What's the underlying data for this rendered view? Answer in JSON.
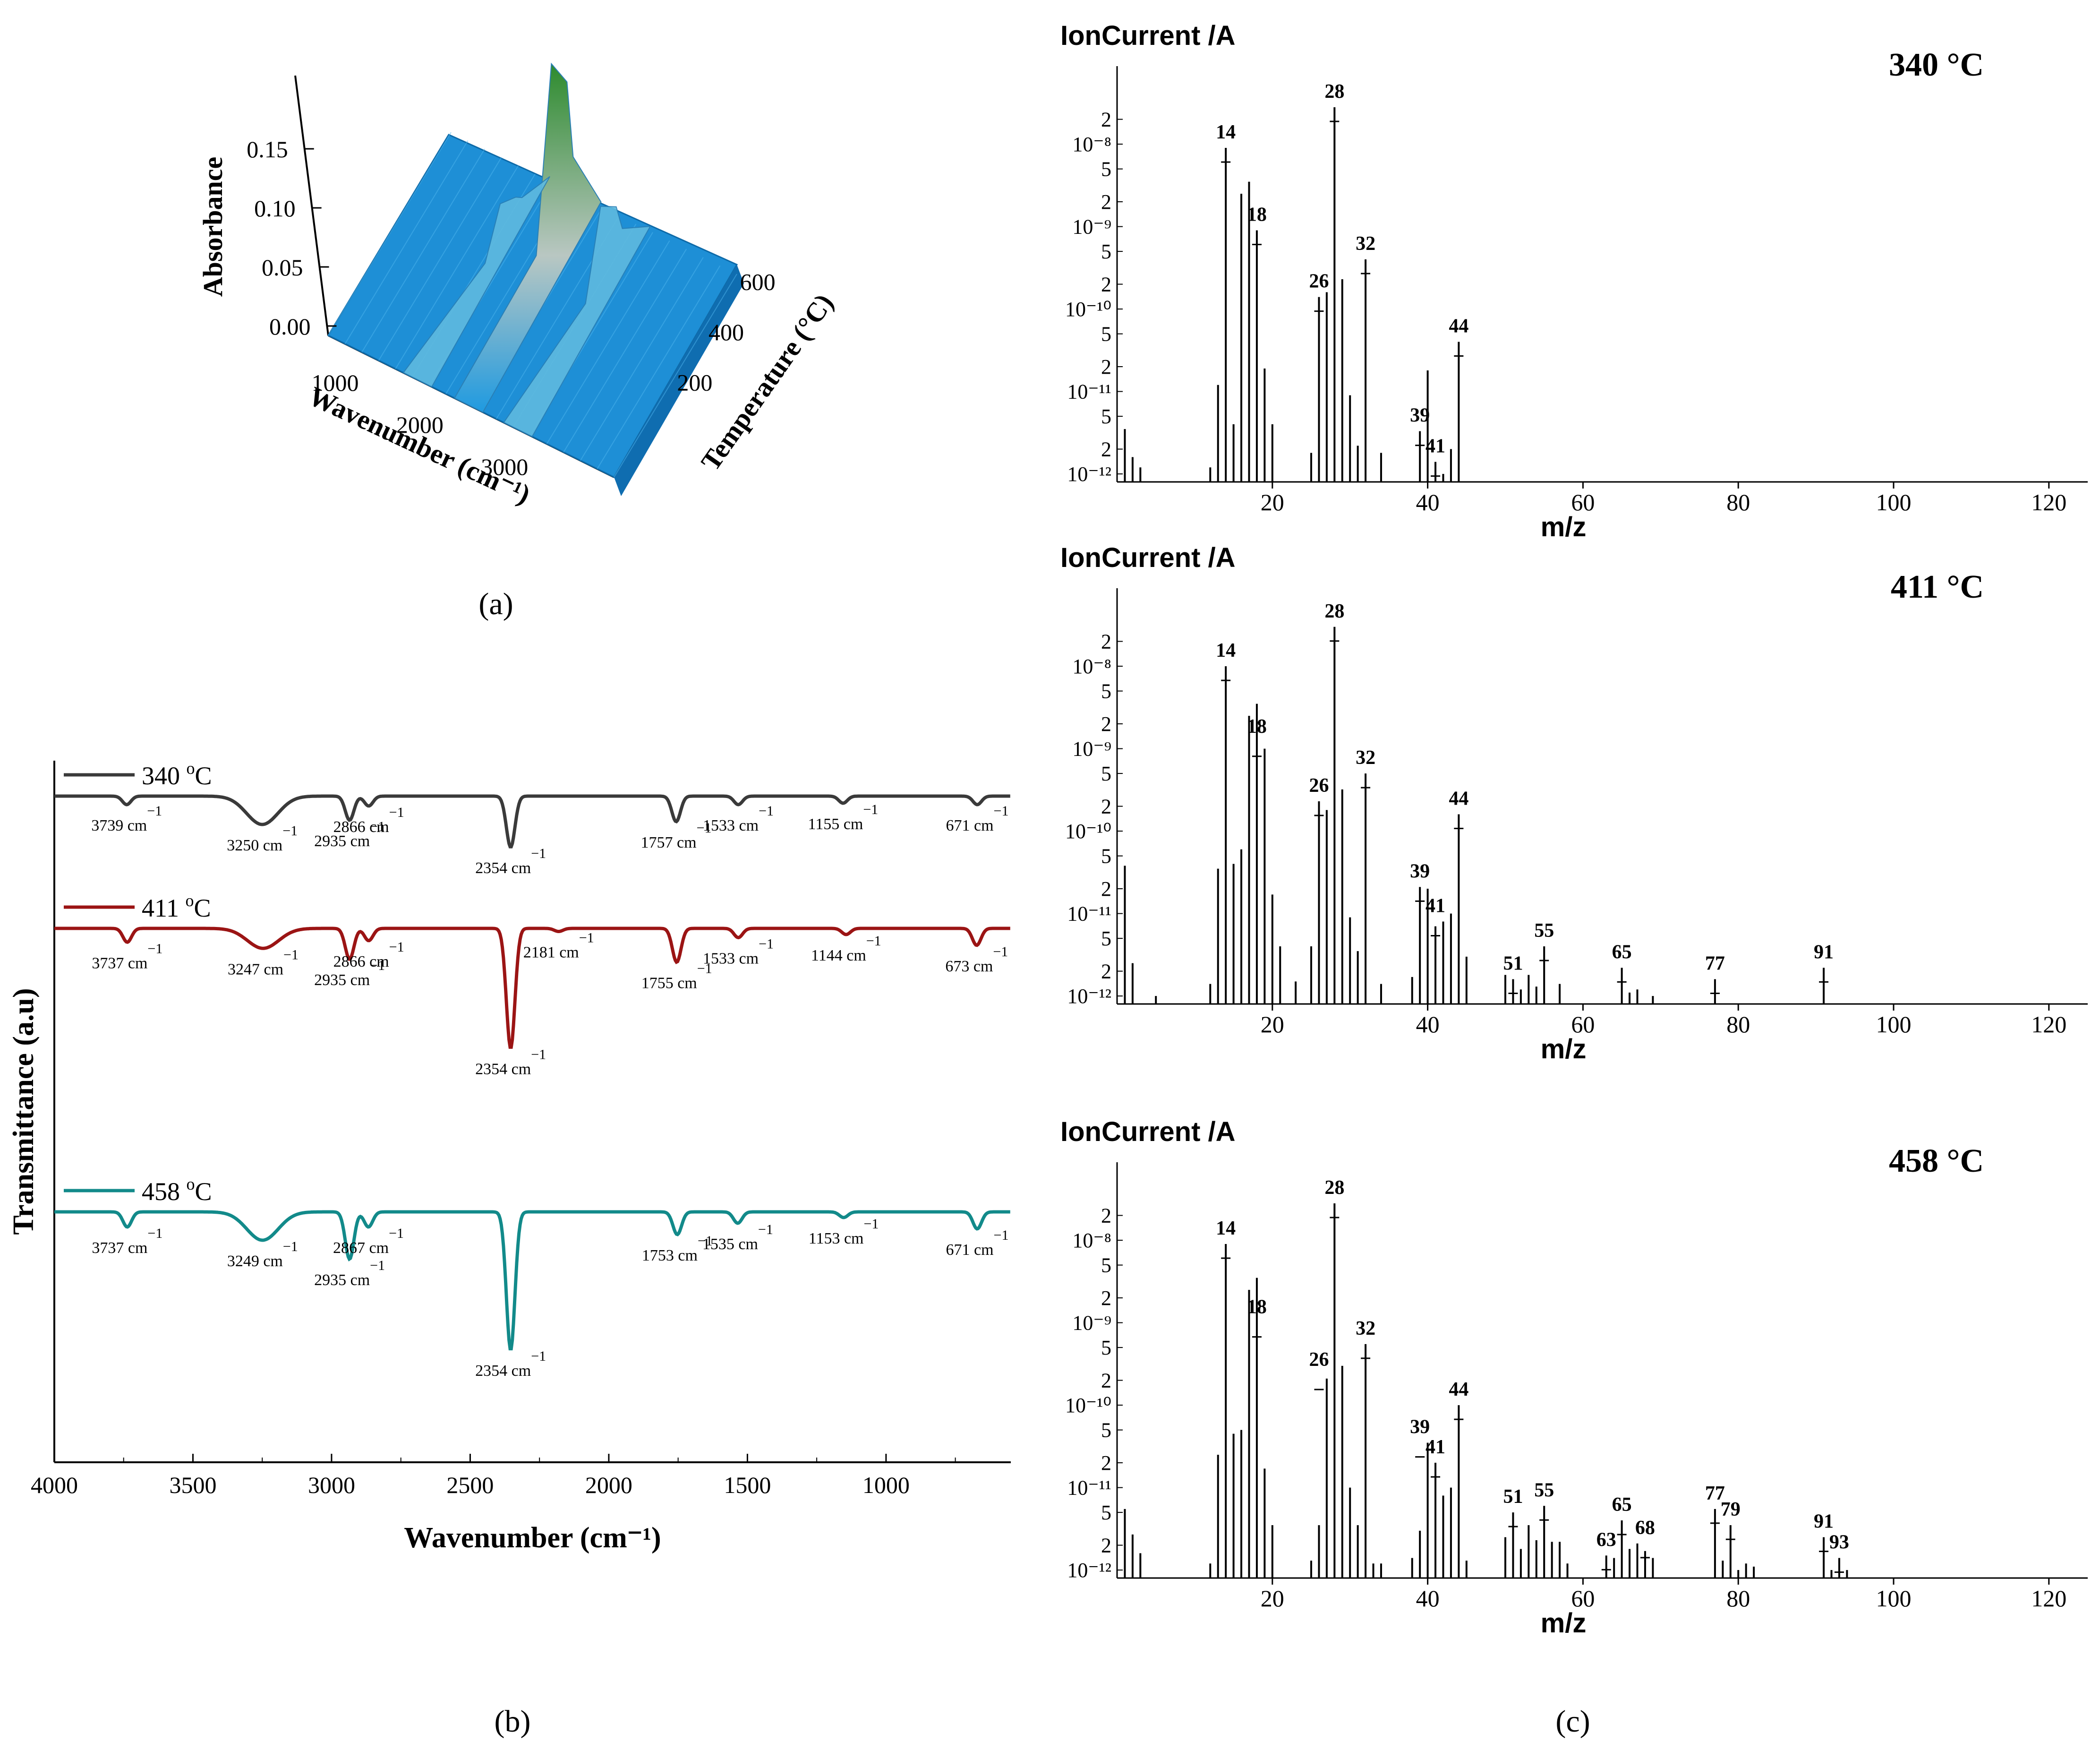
{
  "panel_labels": {
    "a": "(a)",
    "b": "(b)",
    "c": "(c)"
  },
  "colors": {
    "ftir_340": "#3a3a3a",
    "ftir_411": "#9b1414",
    "ftir_458": "#128a8a",
    "surface_low": "#1f9ae0",
    "surface_high": "#2e8b2e"
  },
  "chart_data": [
    {
      "id": "a",
      "type": "area",
      "title": "",
      "zlabel": "Absorbance",
      "xlabel": "Wavenumber (cm⁻¹)",
      "ylabel": "Temperature (°C)",
      "z_ticks": [
        "0.00",
        "0.05",
        "0.10",
        "0.15"
      ],
      "x_ticks": [
        "1000",
        "2000",
        "3000"
      ],
      "y_ticks": [
        "200",
        "400",
        "600"
      ],
      "zlim": [
        0,
        0.18
      ],
      "peaks": [
        {
          "wavenumber": 2354,
          "max_absorbance": 0.16
        },
        {
          "wavenumber": 2935,
          "max_absorbance": 0.06
        },
        {
          "wavenumber": 1750,
          "max_absorbance": 0.02
        }
      ]
    },
    {
      "id": "b",
      "type": "line",
      "xlabel": "Wavenumber (cm⁻¹)",
      "ylabel": "Transmittance (a.u)",
      "xlim": [
        4000,
        550
      ],
      "x_ticks": [
        "4000",
        "3500",
        "3000",
        "2500",
        "2000",
        "1500",
        "1000"
      ],
      "series": [
        {
          "name": "340 °C",
          "legend_main": "340 ",
          "legend_sup": "o",
          "legend_tail": "C",
          "peaks": [
            {
              "label": "3739 cm",
              "sup": "−1",
              "x": 3739,
              "depth": 0.3
            },
            {
              "label": "3250 cm",
              "sup": "−1",
              "x": 3250,
              "depth": 1.0
            },
            {
              "label": "2935 cm",
              "sup": "−1",
              "x": 2935,
              "depth": 0.85
            },
            {
              "label": "2866 cm",
              "sup": "−1",
              "x": 2866,
              "depth": 0.35
            },
            {
              "label": "2354 cm",
              "sup": "−1",
              "x": 2354,
              "depth": 1.8
            },
            {
              "label": "1757 cm",
              "sup": "−1",
              "x": 1757,
              "depth": 0.9
            },
            {
              "label": "1533 cm",
              "sup": "−1",
              "x": 1533,
              "depth": 0.3
            },
            {
              "label": "1155 cm",
              "sup": "−1",
              "x": 1155,
              "depth": 0.25
            },
            {
              "label": "671 cm",
              "sup": "−1",
              "x": 671,
              "depth": 0.3
            }
          ]
        },
        {
          "name": "411 °C",
          "legend_main": "411 ",
          "legend_sup": "o",
          "legend_tail": "C",
          "peaks": [
            {
              "label": "3737 cm",
              "sup": "−1",
              "x": 3737,
              "depth": 0.45
            },
            {
              "label": "3247 cm",
              "sup": "−1",
              "x": 3247,
              "depth": 0.65
            },
            {
              "label": "2935 cm",
              "sup": "−1",
              "x": 2935,
              "depth": 1.0
            },
            {
              "label": "2866 cm",
              "sup": "−1",
              "x": 2866,
              "depth": 0.4
            },
            {
              "label": "2354 cm",
              "sup": "−1",
              "x": 2354,
              "depth": 3.9
            },
            {
              "label": "2181 cm",
              "sup": "−1",
              "x": 2181,
              "depth": 0.1
            },
            {
              "label": "1755 cm",
              "sup": "−1",
              "x": 1755,
              "depth": 1.1
            },
            {
              "label": "1533 cm",
              "sup": "−1",
              "x": 1533,
              "depth": 0.3
            },
            {
              "label": "1144 cm",
              "sup": "−1",
              "x": 1144,
              "depth": 0.2
            },
            {
              "label": "673 cm",
              "sup": "−1",
              "x": 673,
              "depth": 0.55
            }
          ]
        },
        {
          "name": "458 °C",
          "legend_main": "458 ",
          "legend_sup": "o",
          "legend_tail": "C",
          "peaks": [
            {
              "label": "3737 cm",
              "sup": "−1",
              "x": 3737,
              "depth": 0.4
            },
            {
              "label": "3249 cm",
              "sup": "−1",
              "x": 3249,
              "depth": 0.75
            },
            {
              "label": "2935 cm",
              "sup": "−1",
              "x": 2935,
              "depth": 1.25
            },
            {
              "label": "2867 cm",
              "sup": "−1",
              "x": 2867,
              "depth": 0.4
            },
            {
              "label": "2354 cm",
              "sup": "−1",
              "x": 2354,
              "depth": 3.65
            },
            {
              "label": "1753 cm",
              "sup": "−1",
              "x": 1753,
              "depth": 0.6
            },
            {
              "label": "1535 cm",
              "sup": "−1",
              "x": 1535,
              "depth": 0.3
            },
            {
              "label": "1153 cm",
              "sup": "−1",
              "x": 1153,
              "depth": 0.15
            },
            {
              "label": "671 cm",
              "sup": "−1",
              "x": 671,
              "depth": 0.45
            }
          ]
        }
      ]
    },
    {
      "id": "c1",
      "type": "bar",
      "title": "340 °C",
      "ylabel": "IonCurrent /A",
      "xlabel": "m/z",
      "xlim": [
        0,
        125
      ],
      "x_ticks": [
        "20",
        "40",
        "60",
        "80",
        "100",
        "120"
      ],
      "y_scale": "log",
      "ylim": [
        8e-13,
        4e-08
      ],
      "bars": [
        [
          1,
          3.5e-12
        ],
        [
          2,
          1.6e-12
        ],
        [
          3,
          1.2e-12
        ],
        [
          12,
          1.2e-12
        ],
        [
          13,
          1.2e-11
        ],
        [
          14,
          9e-09
        ],
        [
          15,
          4e-12
        ],
        [
          16,
          2.5e-09
        ],
        [
          17,
          3.5e-09
        ],
        [
          18,
          9e-10
        ],
        [
          19,
          1.9e-11
        ],
        [
          20,
          4e-12
        ],
        [
          25,
          1.8e-12
        ],
        [
          26,
          1.4e-10
        ],
        [
          27,
          1.6e-10
        ],
        [
          28,
          2.8e-08
        ],
        [
          29,
          2.3e-10
        ],
        [
          30,
          9e-12
        ],
        [
          31,
          2.2e-12
        ],
        [
          32,
          4e-10
        ],
        [
          34,
          1.8e-12
        ],
        [
          39,
          3.3e-12
        ],
        [
          40,
          1.8e-11
        ],
        [
          41,
          1.4e-12
        ],
        [
          42,
          1e-12
        ],
        [
          43,
          2e-12
        ],
        [
          44,
          4e-11
        ]
      ],
      "labels": [
        {
          "mz": "14",
          "x": 14,
          "y": 9e-09
        },
        {
          "mz": "18",
          "x": 18,
          "y": 9e-10
        },
        {
          "mz": "26",
          "x": 26,
          "y": 1.4e-10
        },
        {
          "mz": "28",
          "x": 28,
          "y": 2.8e-08
        },
        {
          "mz": "32",
          "x": 32,
          "y": 4e-10
        },
        {
          "mz": "39",
          "x": 39,
          "y": 3.3e-12
        },
        {
          "mz": "41",
          "x": 41,
          "y": 1.4e-12
        },
        {
          "mz": "44",
          "x": 44,
          "y": 4e-11
        }
      ]
    },
    {
      "id": "c2",
      "type": "bar",
      "title": "411 °C",
      "ylabel": "IonCurrent /A",
      "xlabel": "m/z",
      "xlim": [
        0,
        125
      ],
      "x_ticks": [
        "20",
        "40",
        "60",
        "80",
        "100",
        "120"
      ],
      "y_scale": "log",
      "ylim": [
        8e-13,
        4e-08
      ],
      "bars": [
        [
          1,
          3.8e-11
        ],
        [
          2,
          2.5e-12
        ],
        [
          5,
          1e-12
        ],
        [
          12,
          1.4e-12
        ],
        [
          13,
          3.5e-11
        ],
        [
          14,
          1e-08
        ],
        [
          15,
          4e-11
        ],
        [
          16,
          6e-11
        ],
        [
          17,
          2.5e-09
        ],
        [
          18,
          3.5e-09
        ],
        [
          19,
          1e-09
        ],
        [
          20,
          1.7e-11
        ],
        [
          21,
          4e-12
        ],
        [
          23,
          1.5e-12
        ],
        [
          25,
          4e-12
        ],
        [
          26,
          2.3e-10
        ],
        [
          27,
          1.8e-10
        ],
        [
          28,
          3e-08
        ],
        [
          29,
          3.2e-10
        ],
        [
          30,
          9e-12
        ],
        [
          31,
          3.5e-12
        ],
        [
          32,
          5e-10
        ],
        [
          34,
          1.4e-12
        ],
        [
          38,
          1.7e-12
        ],
        [
          39,
          2.1e-11
        ],
        [
          40,
          2e-11
        ],
        [
          41,
          7e-12
        ],
        [
          42,
          8e-12
        ],
        [
          43,
          1e-11
        ],
        [
          44,
          1.6e-10
        ],
        [
          45,
          3e-12
        ],
        [
          50,
          1.8e-12
        ],
        [
          51,
          1.6e-12
        ],
        [
          52,
          1.2e-12
        ],
        [
          53,
          1.8e-12
        ],
        [
          54,
          1.3e-12
        ],
        [
          55,
          4e-12
        ],
        [
          57,
          1.4e-12
        ],
        [
          65,
          2.2e-12
        ],
        [
          66,
          1.1e-12
        ],
        [
          67,
          1.2e-12
        ],
        [
          69,
          1e-12
        ],
        [
          77,
          1.6e-12
        ],
        [
          91,
          2.2e-12
        ]
      ],
      "labels": [
        {
          "mz": "14",
          "x": 14,
          "y": 1e-08
        },
        {
          "mz": "18",
          "x": 18,
          "y": 1.2e-09
        },
        {
          "mz": "26",
          "x": 26,
          "y": 2.3e-10
        },
        {
          "mz": "28",
          "x": 28,
          "y": 3e-08
        },
        {
          "mz": "32",
          "x": 32,
          "y": 5e-10
        },
        {
          "mz": "39",
          "x": 39,
          "y": 2.1e-11
        },
        {
          "mz": "41",
          "x": 41,
          "y": 8e-12
        },
        {
          "mz": "44",
          "x": 44,
          "y": 1.6e-10
        },
        {
          "mz": "51",
          "x": 51,
          "y": 1.6e-12
        },
        {
          "mz": "55",
          "x": 55,
          "y": 4e-12
        },
        {
          "mz": "65",
          "x": 65,
          "y": 2.2e-12
        },
        {
          "mz": "77",
          "x": 77,
          "y": 1.6e-12
        },
        {
          "mz": "91",
          "x": 91,
          "y": 2.2e-12
        }
      ]
    },
    {
      "id": "c3",
      "type": "bar",
      "title": "458 °C",
      "ylabel": "IonCurrent /A",
      "xlabel": "m/z",
      "xlim": [
        0,
        125
      ],
      "x_ticks": [
        "20",
        "40",
        "60",
        "80",
        "100",
        "120"
      ],
      "y_scale": "log",
      "ylim": [
        8e-13,
        4e-08
      ],
      "bars": [
        [
          1,
          5.5e-12
        ],
        [
          2,
          2.7e-12
        ],
        [
          3,
          1.6e-12
        ],
        [
          12,
          1.2e-12
        ],
        [
          13,
          2.5e-11
        ],
        [
          14,
          9e-09
        ],
        [
          15,
          4.5e-11
        ],
        [
          16,
          5e-11
        ],
        [
          17,
          2.5e-09
        ],
        [
          18,
          3.5e-09
        ],
        [
          19,
          1.7e-11
        ],
        [
          20,
          3.5e-12
        ],
        [
          25,
          1.3e-12
        ],
        [
          26,
          3.5e-12
        ],
        [
          27,
          2.1e-10
        ],
        [
          28,
          2.8e-08
        ],
        [
          29,
          3e-10
        ],
        [
          30,
          1e-11
        ],
        [
          31,
          3.5e-12
        ],
        [
          32,
          5.5e-10
        ],
        [
          33,
          1.2e-12
        ],
        [
          34,
          1.2e-12
        ],
        [
          38,
          1.4e-12
        ],
        [
          39,
          3e-12
        ],
        [
          40,
          3.5e-11
        ],
        [
          41,
          2e-11
        ],
        [
          42,
          8e-12
        ],
        [
          43,
          1e-11
        ],
        [
          44,
          1e-10
        ],
        [
          45,
          1.3e-12
        ],
        [
          50,
          2.5e-12
        ],
        [
          51,
          5e-12
        ],
        [
          52,
          1.8e-12
        ],
        [
          53,
          3.5e-12
        ],
        [
          54,
          2.3e-12
        ],
        [
          55,
          6e-12
        ],
        [
          56,
          2.2e-12
        ],
        [
          57,
          2.2e-12
        ],
        [
          58,
          1.2e-12
        ],
        [
          63,
          1.5e-12
        ],
        [
          64,
          1.4e-12
        ],
        [
          65,
          4e-12
        ],
        [
          66,
          1.8e-12
        ],
        [
          67,
          2.1e-12
        ],
        [
          68,
          1.7e-12
        ],
        [
          69,
          1.4e-12
        ],
        [
          77,
          5.5e-12
        ],
        [
          78,
          1.3e-12
        ],
        [
          79,
          3.5e-12
        ],
        [
          80,
          1e-12
        ],
        [
          81,
          1.2e-12
        ],
        [
          82,
          1.1e-12
        ],
        [
          91,
          2.5e-12
        ],
        [
          92,
          1e-12
        ],
        [
          93,
          1.4e-12
        ],
        [
          94,
          1e-12
        ]
      ],
      "labels": [
        {
          "mz": "14",
          "x": 14,
          "y": 9e-09
        },
        {
          "mz": "18",
          "x": 18,
          "y": 1e-09
        },
        {
          "mz": "26",
          "x": 26,
          "y": 2.3e-10
        },
        {
          "mz": "28",
          "x": 28,
          "y": 2.8e-08
        },
        {
          "mz": "32",
          "x": 32,
          "y": 5.5e-10
        },
        {
          "mz": "39",
          "x": 39,
          "y": 3.5e-11
        },
        {
          "mz": "41",
          "x": 41,
          "y": 2e-11
        },
        {
          "mz": "44",
          "x": 44,
          "y": 1e-10
        },
        {
          "mz": "51",
          "x": 51,
          "y": 5e-12
        },
        {
          "mz": "55",
          "x": 55,
          "y": 6e-12
        },
        {
          "mz": "63",
          "x": 63,
          "y": 1.5e-12
        },
        {
          "mz": "65",
          "x": 65,
          "y": 4e-12
        },
        {
          "mz": "68",
          "x": 68,
          "y": 2.1e-12
        },
        {
          "mz": "77",
          "x": 77,
          "y": 5.5e-12
        },
        {
          "mz": "79",
          "x": 79,
          "y": 3.5e-12
        },
        {
          "mz": "91",
          "x": 91,
          "y": 2.5e-12
        },
        {
          "mz": "93",
          "x": 93,
          "y": 1.4e-12
        }
      ]
    }
  ],
  "log_tick_labels": [
    "10⁻¹²",
    "2",
    "5",
    "10⁻¹¹",
    "2",
    "5",
    "10⁻¹⁰",
    "2",
    "5",
    "10⁻⁹",
    "2",
    "5",
    "10⁻⁸",
    "2"
  ]
}
